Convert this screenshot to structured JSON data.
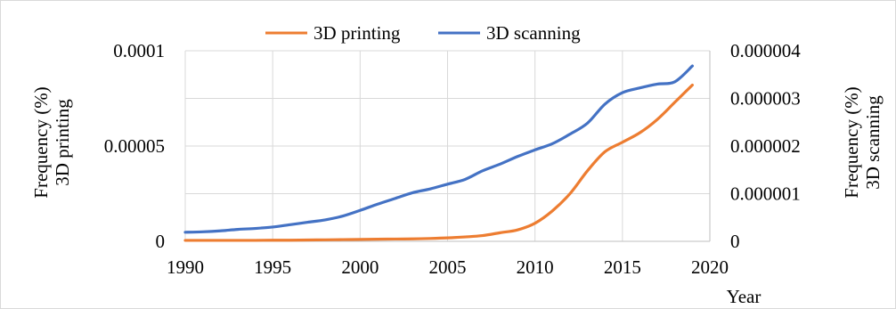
{
  "chart_data": {
    "type": "line",
    "x": [
      1990,
      1991,
      1992,
      1993,
      1994,
      1995,
      1996,
      1997,
      1998,
      1999,
      2000,
      2001,
      2002,
      2003,
      2004,
      2005,
      2006,
      2007,
      2008,
      2009,
      2010,
      2011,
      2012,
      2013,
      2014,
      2015,
      2016,
      2017,
      2018,
      2019
    ],
    "series": [
      {
        "name": "3D printing",
        "axis": "left",
        "color": "#ED7D31",
        "values": [
          5e-07,
          5e-07,
          5e-07,
          5e-07,
          5e-07,
          6e-07,
          6e-07,
          7e-07,
          8e-07,
          9e-07,
          1e-06,
          1.1e-06,
          1.2e-06,
          1.3e-06,
          1.5e-06,
          1.8e-06,
          2.3e-06,
          3e-06,
          4.5e-06,
          6e-06,
          9.5e-06,
          1.6e-05,
          2.5e-05,
          3.7e-05,
          4.7e-05,
          5.2e-05,
          5.7e-05,
          6.4e-05,
          7.3e-05,
          8.2e-05
        ]
      },
      {
        "name": "3D scanning",
        "axis": "right",
        "color": "#4472C4",
        "values": [
          1.9e-07,
          2e-07,
          2.2e-07,
          2.5e-07,
          2.7e-07,
          3e-07,
          3.5e-07,
          4e-07,
          4.5e-07,
          5.3e-07,
          6.5e-07,
          7.8e-07,
          9e-07,
          1.02e-06,
          1.1e-06,
          1.2e-06,
          1.3e-06,
          1.48e-06,
          1.62e-06,
          1.78e-06,
          1.92e-06,
          2.05e-06,
          2.25e-06,
          2.48e-06,
          2.88e-06,
          3.12e-06,
          3.22e-06,
          3.3e-06,
          3.35e-06,
          3.68e-06
        ]
      }
    ],
    "x_ticks": [
      "1990",
      "1995",
      "2000",
      "2005",
      "2010",
      "2015",
      "2020"
    ],
    "left_ticks": [
      "0",
      "0.00005",
      "0.0001"
    ],
    "right_ticks": [
      "0",
      "0.000001",
      "0.000002",
      "0.000003",
      "0.000004"
    ],
    "xlim": [
      1990,
      2020
    ],
    "ylim_left": [
      0,
      0.0001
    ],
    "ylim_right": [
      0,
      4e-06
    ],
    "xlabel": "Year",
    "ylabel_left": [
      "Frequency (%)",
      "3D printing"
    ],
    "ylabel_right": [
      "Frequency (%)",
      "3D scanning"
    ],
    "legend_position": "top",
    "grid": true
  }
}
